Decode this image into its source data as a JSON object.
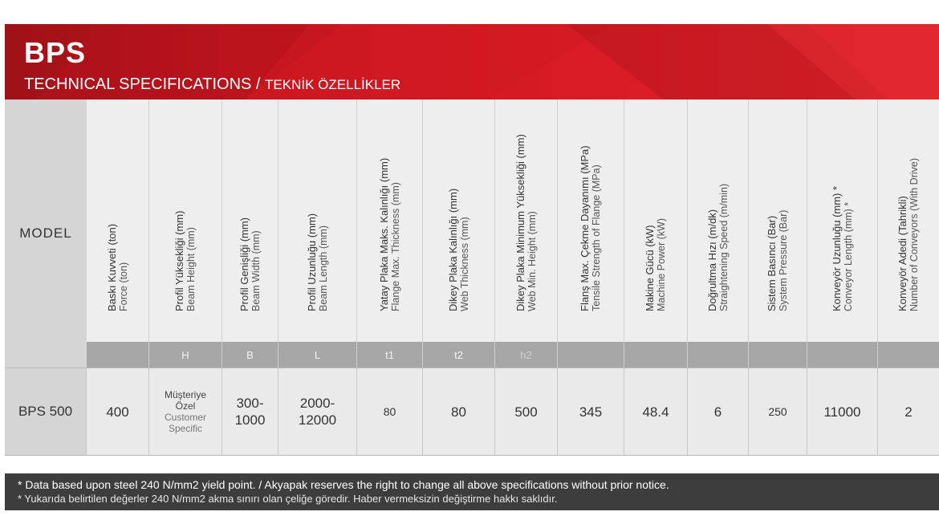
{
  "banner": {
    "brand": "BPS",
    "subtitle_en": "TECHNICAL SPECIFICATIONS",
    "separator": " / ",
    "subtitle_tr": "TEKNİK ÖZELLİKLER"
  },
  "table": {
    "model_header": "MODEL",
    "columns": [
      {
        "tr": "Baskı Kuvveti (ton)",
        "en": "Force (ton)",
        "symbol": ""
      },
      {
        "tr": "Profil Yüksekliği (mm)",
        "en": "Beam Height (mm)",
        "symbol": "H"
      },
      {
        "tr": "Profil Genişliği (mm)",
        "en": "Beam Width (mm)",
        "symbol": "B"
      },
      {
        "tr": "Profil Uzunluğu (mm)",
        "en": "Beam Length (mm)",
        "symbol": "L"
      },
      {
        "tr": "Yatay Plaka Maks. Kalınlığı (mm)",
        "en": "Flange Max. Thickness (mm)",
        "symbol": "t1"
      },
      {
        "tr": "Dikey Plaka Kalınlığı (mm)",
        "en": "Web Thickness (mm)",
        "symbol": "t2"
      },
      {
        "tr": "Dikey Plaka Minimum Yüksekliği (mm)",
        "en": "Web Min. Height (mm)",
        "symbol": "h2"
      },
      {
        "tr": "Flanş Max. Çekme Dayanımı (MPa)",
        "en": "Tensile Strength of Flange (MPa)",
        "symbol": ""
      },
      {
        "tr": "Makine Gücü (kW)",
        "en": "Machine Power (kW)",
        "symbol": ""
      },
      {
        "tr": "Doğrultma Hızı (m/dk)",
        "en": "Straightening Speed (m/min)",
        "symbol": ""
      },
      {
        "tr": "Sistem Basıncı (Bar)",
        "en": "System Pressure (Bar)",
        "symbol": ""
      },
      {
        "tr": "Konveyör Uzunluğu (mm) *",
        "en": "Conveyor Length (mm) *",
        "symbol": ""
      },
      {
        "tr": "Konveyör Adedi (Tahrikli)",
        "en": "Number of Conveyors (With Drive)",
        "symbol": ""
      }
    ],
    "row": {
      "model": "BPS 500",
      "force": "400",
      "height_tr": "Müşteriye Özel",
      "height_en": "Customer Specific",
      "width": "300-\n1000",
      "length": "2000-\n12000",
      "flange_thickness": "80",
      "web_thickness": "80",
      "web_min_height": "500",
      "tensile_strength": "345",
      "power": "48.4",
      "speed": "6",
      "pressure": "250",
      "conveyor_length": "11000",
      "conveyors": "2"
    }
  },
  "footer": {
    "line1": "* Data based upon steel 240 N/mm2 yield point. / Akyapak reserves the right to change all above specifications without prior notice.",
    "line2": "* Yukarıda belirtilen değerler 240 N/mm2  akma sınırı olan çeliğe göredir. Haber vermeksizin değiştirme hakkı saklıdır."
  }
}
